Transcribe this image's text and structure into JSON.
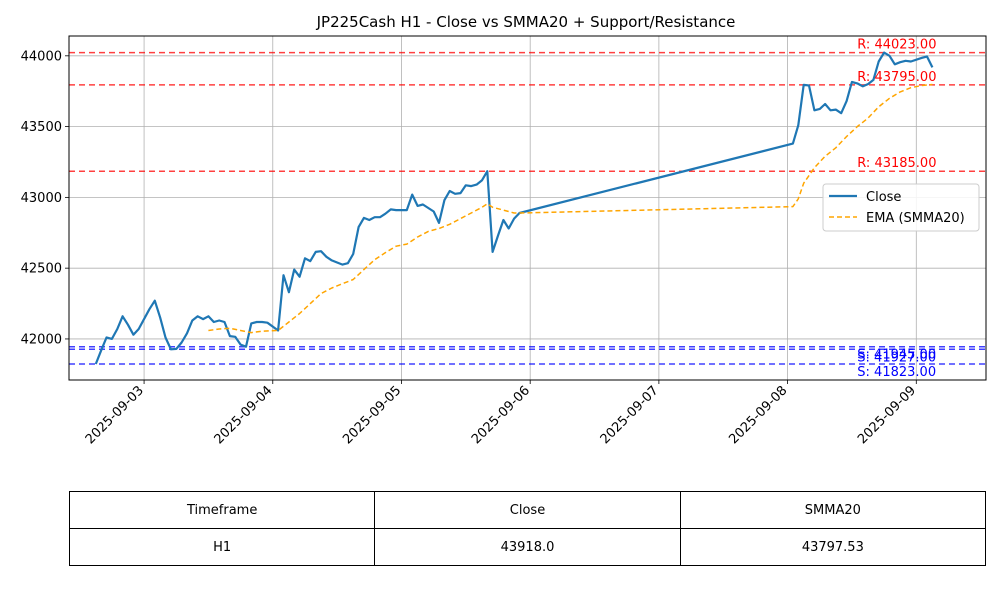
{
  "chart_data": {
    "type": "line",
    "title": "JP225Cash H1 - Close vs SMMA20 + Support/Resistance",
    "xlabel": "",
    "ylabel": "",
    "xlim": [
      "2025-09-02 10:00",
      "2025-09-09 13:00"
    ],
    "ylim": [
      41710,
      44140
    ],
    "x_ticks": [
      "2025-09-03",
      "2025-09-04",
      "2025-09-05",
      "2025-09-06",
      "2025-09-07",
      "2025-09-08",
      "2025-09-09"
    ],
    "y_ticks": [
      42000,
      42500,
      43000,
      43500,
      44000
    ],
    "grid": true,
    "legend": {
      "position": "center-right",
      "entries": [
        "Close",
        "EMA (SMMA20)"
      ]
    },
    "colors": {
      "close": "#1f77b4",
      "smma": "#ffa500",
      "resistance": "#ff0000",
      "support": "#0000ff",
      "grid": "#b0b0b0"
    },
    "series": [
      {
        "name": "Close",
        "style": "solid",
        "points": [
          [
            "2025-09-02 15:00",
            41823
          ],
          [
            "2025-09-02 16:00",
            41920
          ],
          [
            "2025-09-02 17:00",
            42010
          ],
          [
            "2025-09-02 18:00",
            42000
          ],
          [
            "2025-09-02 19:00",
            42070
          ],
          [
            "2025-09-02 20:00",
            42160
          ],
          [
            "2025-09-02 21:00",
            42100
          ],
          [
            "2025-09-02 22:00",
            42030
          ],
          [
            "2025-09-02 23:00",
            42070
          ],
          [
            "2025-09-03 01:00",
            42210
          ],
          [
            "2025-09-03 02:00",
            42270
          ],
          [
            "2025-09-03 03:00",
            42150
          ],
          [
            "2025-09-03 04:00",
            42010
          ],
          [
            "2025-09-03 05:00",
            41927
          ],
          [
            "2025-09-03 06:00",
            41930
          ],
          [
            "2025-09-03 07:00",
            41975
          ],
          [
            "2025-09-03 08:00",
            42040
          ],
          [
            "2025-09-03 09:00",
            42130
          ],
          [
            "2025-09-03 10:00",
            42160
          ],
          [
            "2025-09-03 11:00",
            42140
          ],
          [
            "2025-09-03 12:00",
            42160
          ],
          [
            "2025-09-03 13:00",
            42120
          ],
          [
            "2025-09-03 14:00",
            42130
          ],
          [
            "2025-09-03 15:00",
            42120
          ],
          [
            "2025-09-03 16:00",
            42020
          ],
          [
            "2025-09-03 17:00",
            42015
          ],
          [
            "2025-09-03 18:00",
            41960
          ],
          [
            "2025-09-03 19:00",
            41945
          ],
          [
            "2025-09-03 20:00",
            42110
          ],
          [
            "2025-09-03 21:00",
            42120
          ],
          [
            "2025-09-03 22:00",
            42120
          ],
          [
            "2025-09-03 23:00",
            42115
          ],
          [
            "2025-09-04 01:00",
            42060
          ],
          [
            "2025-09-04 02:00",
            42450
          ],
          [
            "2025-09-04 03:00",
            42330
          ],
          [
            "2025-09-04 04:00",
            42490
          ],
          [
            "2025-09-04 05:00",
            42440
          ],
          [
            "2025-09-04 06:00",
            42570
          ],
          [
            "2025-09-04 07:00",
            42550
          ],
          [
            "2025-09-04 08:00",
            42615
          ],
          [
            "2025-09-04 09:00",
            42620
          ],
          [
            "2025-09-04 10:00",
            42580
          ],
          [
            "2025-09-04 11:00",
            42555
          ],
          [
            "2025-09-04 12:00",
            42540
          ],
          [
            "2025-09-04 13:00",
            42525
          ],
          [
            "2025-09-04 14:00",
            42535
          ],
          [
            "2025-09-04 15:00",
            42600
          ],
          [
            "2025-09-04 16:00",
            42790
          ],
          [
            "2025-09-04 17:00",
            42855
          ],
          [
            "2025-09-04 18:00",
            42840
          ],
          [
            "2025-09-04 19:00",
            42860
          ],
          [
            "2025-09-04 20:00",
            42860
          ],
          [
            "2025-09-04 21:00",
            42885
          ],
          [
            "2025-09-04 22:00",
            42915
          ],
          [
            "2025-09-04 23:00",
            42910
          ],
          [
            "2025-09-05 01:00",
            42910
          ],
          [
            "2025-09-05 02:00",
            43020
          ],
          [
            "2025-09-05 03:00",
            42940
          ],
          [
            "2025-09-05 04:00",
            42950
          ],
          [
            "2025-09-05 05:00",
            42925
          ],
          [
            "2025-09-05 06:00",
            42900
          ],
          [
            "2025-09-05 07:00",
            42820
          ],
          [
            "2025-09-05 08:00",
            42980
          ],
          [
            "2025-09-05 09:00",
            43045
          ],
          [
            "2025-09-05 10:00",
            43025
          ],
          [
            "2025-09-05 11:00",
            43030
          ],
          [
            "2025-09-05 12:00",
            43085
          ],
          [
            "2025-09-05 13:00",
            43080
          ],
          [
            "2025-09-05 14:00",
            43090
          ],
          [
            "2025-09-05 15:00",
            43120
          ],
          [
            "2025-09-05 16:00",
            43185
          ],
          [
            "2025-09-05 17:00",
            42615
          ],
          [
            "2025-09-05 18:00",
            42730
          ],
          [
            "2025-09-05 19:00",
            42840
          ],
          [
            "2025-09-05 20:00",
            42780
          ],
          [
            "2025-09-05 21:00",
            42850
          ],
          [
            "2025-09-05 22:00",
            42890
          ],
          [
            "2025-09-08 01:00",
            43380
          ],
          [
            "2025-09-08 02:00",
            43510
          ],
          [
            "2025-09-08 03:00",
            43795
          ],
          [
            "2025-09-08 04:00",
            43790
          ],
          [
            "2025-09-08 05:00",
            43615
          ],
          [
            "2025-09-08 06:00",
            43625
          ],
          [
            "2025-09-08 07:00",
            43660
          ],
          [
            "2025-09-08 08:00",
            43615
          ],
          [
            "2025-09-08 09:00",
            43620
          ],
          [
            "2025-09-08 10:00",
            43595
          ],
          [
            "2025-09-08 11:00",
            43680
          ],
          [
            "2025-09-08 12:00",
            43815
          ],
          [
            "2025-09-08 13:00",
            43805
          ],
          [
            "2025-09-08 14:00",
            43785
          ],
          [
            "2025-09-08 15:00",
            43800
          ],
          [
            "2025-09-08 16:00",
            43830
          ],
          [
            "2025-09-08 17:00",
            43960
          ],
          [
            "2025-09-08 18:00",
            44023
          ],
          [
            "2025-09-08 19:00",
            44000
          ],
          [
            "2025-09-08 20:00",
            43940
          ],
          [
            "2025-09-08 21:00",
            43955
          ],
          [
            "2025-09-08 22:00",
            43965
          ],
          [
            "2025-09-08 23:00",
            43960
          ],
          [
            "2025-09-09 01:00",
            43985
          ],
          [
            "2025-09-09 02:00",
            43995
          ],
          [
            "2025-09-09 03:00",
            43918
          ]
        ]
      },
      {
        "name": "EMA (SMMA20)",
        "style": "dashed",
        "points": [
          [
            "2025-09-03 12:00",
            42060
          ],
          [
            "2025-09-03 14:00",
            42070
          ],
          [
            "2025-09-03 16:00",
            42075
          ],
          [
            "2025-09-03 18:00",
            42060
          ],
          [
            "2025-09-03 20:00",
            42045
          ],
          [
            "2025-09-03 22:00",
            42055
          ],
          [
            "2025-09-04 01:00",
            42060
          ],
          [
            "2025-09-04 03:00",
            42120
          ],
          [
            "2025-09-04 05:00",
            42180
          ],
          [
            "2025-09-04 07:00",
            42250
          ],
          [
            "2025-09-04 09:00",
            42320
          ],
          [
            "2025-09-04 11:00",
            42360
          ],
          [
            "2025-09-04 13:00",
            42390
          ],
          [
            "2025-09-04 15:00",
            42420
          ],
          [
            "2025-09-04 17:00",
            42490
          ],
          [
            "2025-09-04 19:00",
            42560
          ],
          [
            "2025-09-04 21:00",
            42610
          ],
          [
            "2025-09-04 23:00",
            42655
          ],
          [
            "2025-09-05 01:00",
            42670
          ],
          [
            "2025-09-05 03:00",
            42720
          ],
          [
            "2025-09-05 05:00",
            42760
          ],
          [
            "2025-09-05 07:00",
            42780
          ],
          [
            "2025-09-05 09:00",
            42810
          ],
          [
            "2025-09-05 11:00",
            42850
          ],
          [
            "2025-09-05 13:00",
            42890
          ],
          [
            "2025-09-05 15:00",
            42930
          ],
          [
            "2025-09-05 16:00",
            42955
          ],
          [
            "2025-09-05 17:00",
            42930
          ],
          [
            "2025-09-05 19:00",
            42910
          ],
          [
            "2025-09-05 21:00",
            42890
          ],
          [
            "2025-09-05 22:00",
            42890
          ],
          [
            "2025-09-08 01:00",
            42935
          ],
          [
            "2025-09-08 02:00",
            42990
          ],
          [
            "2025-09-08 03:00",
            43100
          ],
          [
            "2025-09-08 05:00",
            43210
          ],
          [
            "2025-09-08 07:00",
            43290
          ],
          [
            "2025-09-08 09:00",
            43350
          ],
          [
            "2025-09-08 11:00",
            43430
          ],
          [
            "2025-09-08 13:00",
            43500
          ],
          [
            "2025-09-08 15:00",
            43560
          ],
          [
            "2025-09-08 17:00",
            43640
          ],
          [
            "2025-09-08 19:00",
            43700
          ],
          [
            "2025-09-08 21:00",
            43745
          ],
          [
            "2025-09-08 23:00",
            43775
          ],
          [
            "2025-09-09 01:00",
            43790
          ],
          [
            "2025-09-09 03:00",
            43797.53
          ]
        ]
      }
    ],
    "resistance_levels": [
      {
        "value": 44023,
        "label": "R: 44023.00"
      },
      {
        "value": 43795,
        "label": "R: 43795.00"
      },
      {
        "value": 43185,
        "label": "R: 43185.00"
      }
    ],
    "support_levels": [
      {
        "value": 41945,
        "label": "S: 41945.00"
      },
      {
        "value": 41927,
        "label": "S: 41927.00"
      },
      {
        "value": 41823,
        "label": "S: 41823.00"
      }
    ]
  },
  "summary_table": {
    "headers": [
      "Timeframe",
      "Close",
      "SMMA20"
    ],
    "row": [
      "H1",
      "43918.0",
      "43797.53"
    ]
  }
}
